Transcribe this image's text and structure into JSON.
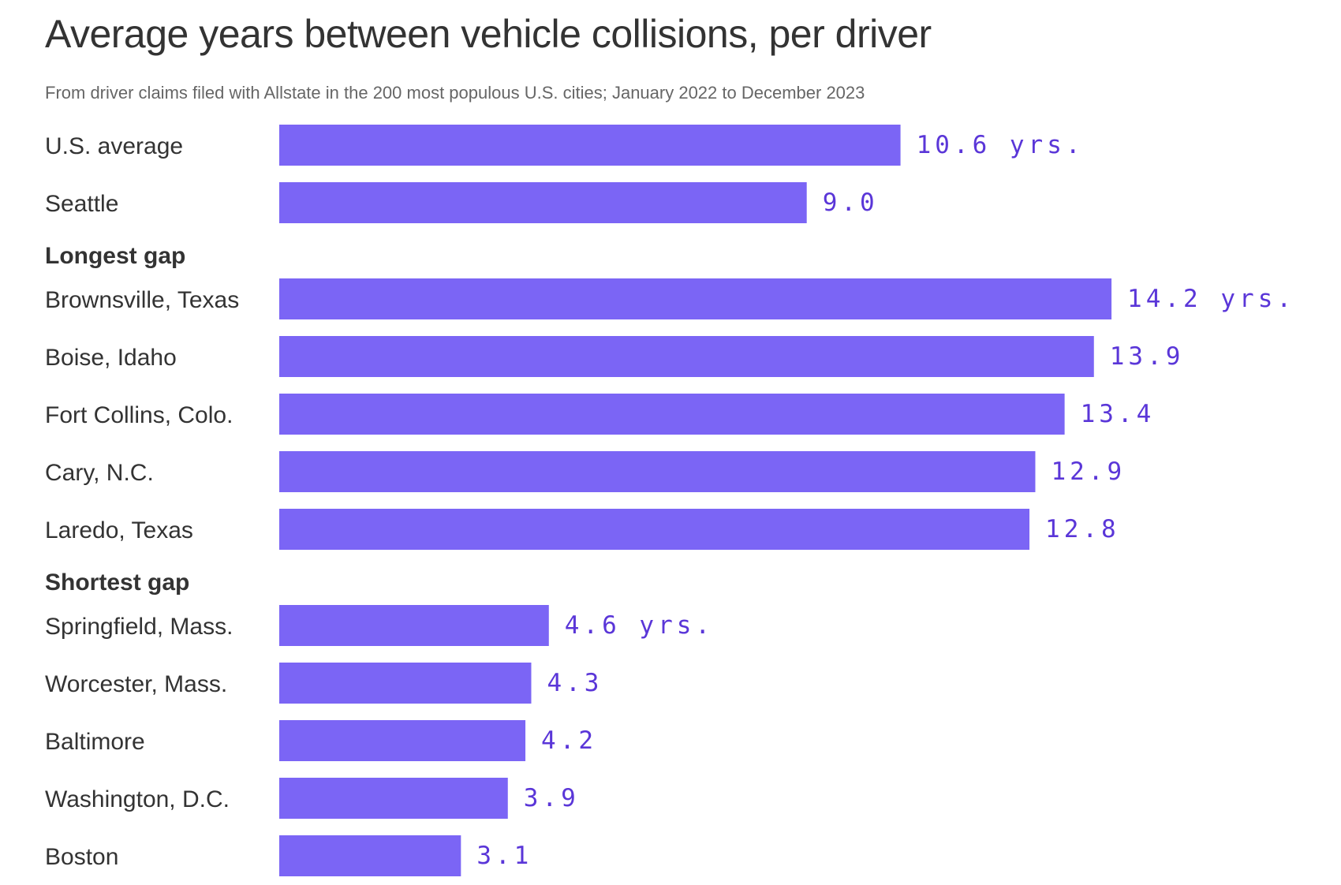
{
  "title": "Average years between vehicle collisions, per driver",
  "subtitle": "From driver claims filed with Allstate in the 200 most populous U.S. cities; January 2022 to December 2023",
  "chart_data": {
    "type": "bar",
    "orientation": "horizontal",
    "title": "Average years between vehicle collisions, per driver",
    "subtitle": "From driver claims filed with Allstate in the 200 most populous U.S. cities; January 2022 to December 2023",
    "colors": {
      "bar": "#7b65f5",
      "value_label": "#5a36d8"
    },
    "xlim": [
      0,
      15
    ],
    "grid": false,
    "groups": [
      {
        "name": "",
        "rows": [
          {
            "label": "U.S. average",
            "value": 10.6,
            "value_label": "10.6 yrs."
          },
          {
            "label": "Seattle",
            "value": 9.0,
            "value_label": "9.0"
          }
        ]
      },
      {
        "name": "Longest gap",
        "rows": [
          {
            "label": "Brownsville, Texas",
            "value": 14.2,
            "value_label": "14.2 yrs."
          },
          {
            "label": "Boise, Idaho",
            "value": 13.9,
            "value_label": "13.9"
          },
          {
            "label": "Fort Collins, Colo.",
            "value": 13.4,
            "value_label": "13.4"
          },
          {
            "label": "Cary, N.C.",
            "value": 12.9,
            "value_label": "12.9"
          },
          {
            "label": "Laredo, Texas",
            "value": 12.8,
            "value_label": "12.8"
          }
        ]
      },
      {
        "name": "Shortest gap",
        "rows": [
          {
            "label": "Springfield, Mass.",
            "value": 4.6,
            "value_label": "4.6 yrs."
          },
          {
            "label": "Worcester, Mass.",
            "value": 4.3,
            "value_label": "4.3"
          },
          {
            "label": "Baltimore",
            "value": 4.2,
            "value_label": "4.2"
          },
          {
            "label": "Washington, D.C.",
            "value": 3.9,
            "value_label": "3.9"
          },
          {
            "label": "Boston",
            "value": 3.1,
            "value_label": "3.1"
          }
        ]
      }
    ]
  }
}
